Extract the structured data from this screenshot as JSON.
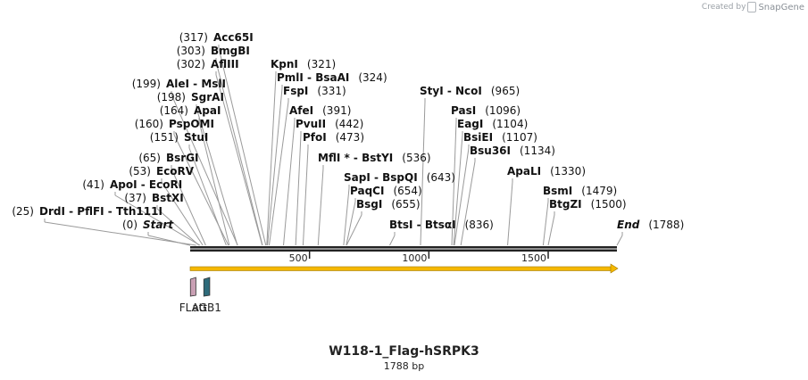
{
  "credit": {
    "prefix": "Created by",
    "brand": "SnapGene"
  },
  "map": {
    "title": "W118-1_Flag-hSRPK3",
    "length_label": "1788 bp",
    "length": 1788,
    "ticks": [
      {
        "pos": 500,
        "label": "500"
      },
      {
        "pos": 1000,
        "label": "1000"
      },
      {
        "pos": 1500,
        "label": "1500"
      }
    ],
    "features": [
      {
        "name": "FLAG",
        "start": 1,
        "end": 24,
        "color": "#c9a0b4"
      },
      {
        "name": "attB1",
        "start": 57,
        "end": 82,
        "color": "#2e6b7a"
      }
    ],
    "main_feature_color": "#f5b800",
    "sites": [
      {
        "enzyme": "Start",
        "pos": 0,
        "num": "(0)",
        "italic": true
      },
      {
        "enzyme": "DrdI - PflFI - Tth111I",
        "pos": 25,
        "num": "(25)"
      },
      {
        "enzyme": "BstXI",
        "pos": 37,
        "num": "(37)"
      },
      {
        "enzyme": "ApoI - EcoRI",
        "pos": 41,
        "num": "(41)"
      },
      {
        "enzyme": "EcoRV",
        "pos": 53,
        "num": "(53)"
      },
      {
        "enzyme": "BsrGI",
        "pos": 65,
        "num": "(65)"
      },
      {
        "enzyme": "StuI",
        "pos": 151,
        "num": "(151)"
      },
      {
        "enzyme": "PspOMI",
        "pos": 160,
        "num": "(160)"
      },
      {
        "enzyme": "ApaI",
        "pos": 164,
        "num": "(164)"
      },
      {
        "enzyme": "SgrAI",
        "pos": 198,
        "num": "(198)"
      },
      {
        "enzyme": "AleI - MslI",
        "pos": 199,
        "num": "(199)"
      },
      {
        "enzyme": "AflIII",
        "pos": 302,
        "num": "(302)"
      },
      {
        "enzyme": "BmgBI",
        "pos": 303,
        "num": "(303)"
      },
      {
        "enzyme": "Acc65I",
        "pos": 317,
        "num": "(317)"
      },
      {
        "enzyme": "KpnI",
        "pos": 321,
        "num": "(321)"
      },
      {
        "enzyme": "PmlI - BsaAI",
        "pos": 324,
        "num": "(324)"
      },
      {
        "enzyme": "FspI",
        "pos": 331,
        "num": "(331)"
      },
      {
        "enzyme": "AfeI",
        "pos": 391,
        "num": "(391)"
      },
      {
        "enzyme": "PvuII",
        "pos": 442,
        "num": "(442)"
      },
      {
        "enzyme": "PfoI",
        "pos": 473,
        "num": "(473)"
      },
      {
        "enzyme": "MflI * - BstYI",
        "pos": 536,
        "num": "(536)"
      },
      {
        "enzyme": "SapI - BspQI",
        "pos": 643,
        "num": "(643)"
      },
      {
        "enzyme": "PaqCI",
        "pos": 654,
        "num": "(654)"
      },
      {
        "enzyme": "BsgI",
        "pos": 655,
        "num": "(655)"
      },
      {
        "enzyme": "BtsI - BtsαI",
        "pos": 836,
        "num": "(836)"
      },
      {
        "enzyme": "StyI - NcoI",
        "pos": 965,
        "num": "(965)"
      },
      {
        "enzyme": "PasI",
        "pos": 1096,
        "num": "(1096)"
      },
      {
        "enzyme": "EagI",
        "pos": 1104,
        "num": "(1104)"
      },
      {
        "enzyme": "BsiEI",
        "pos": 1107,
        "num": "(1107)"
      },
      {
        "enzyme": "Bsu36I",
        "pos": 1134,
        "num": "(1134)"
      },
      {
        "enzyme": "ApaLI",
        "pos": 1330,
        "num": "(1330)"
      },
      {
        "enzyme": "BsmI",
        "pos": 1479,
        "num": "(1479)"
      },
      {
        "enzyme": "BtgZI",
        "pos": 1500,
        "num": "(1500)"
      },
      {
        "enzyme": "End",
        "pos": 1788,
        "num": "(1788)",
        "italic": true
      }
    ]
  }
}
